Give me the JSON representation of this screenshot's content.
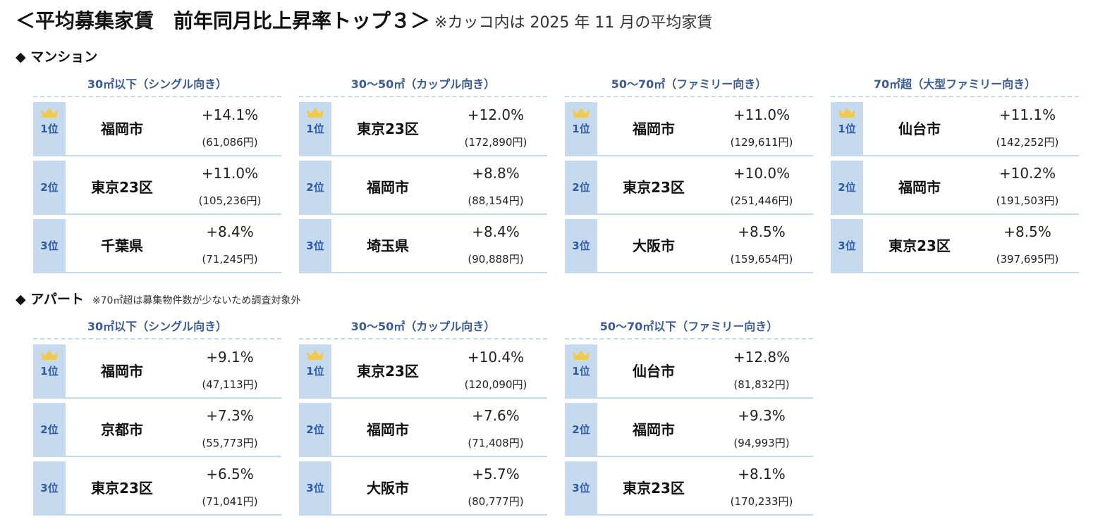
{
  "title": "＜平均募集家賃　前年同月比上昇率トップ３＞",
  "title_note": "※カッコ内は 2025 年 11 月の平均家賃",
  "sections": [
    {
      "heading": "◆ マンション",
      "groups": [
        {
          "header": "30㎡以下（シングル向き）",
          "rows": [
            [
              "1位",
              "福岡市",
              "+14.1%",
              "(61,086円)"
            ],
            [
              "2位",
              "東京23区",
              "+11.0%",
              "(105,236円)"
            ],
            [
              "3位",
              "千葉県",
              "+8.4%",
              "(71,245円)"
            ]
          ]
        },
        {
          "header": "30～50㎡（カップル向き）",
          "rows": [
            [
              "1位",
              "東京23区",
              "+12.0%",
              "(172,890円)"
            ],
            [
              "2位",
              "福岡市",
              "+8.8%",
              "(88,154円)"
            ],
            [
              "3位",
              "埼玉県",
              "+8.4%",
              "(90,888円)"
            ]
          ]
        },
        {
          "header": "50～70㎡（ファミリー向き）",
          "rows": [
            [
              "1位",
              "福岡市",
              "+11.0%",
              "(129,611円)"
            ],
            [
              "2位",
              "東京23区",
              "+10.0%",
              "(251,446円)"
            ],
            [
              "3位",
              "大阪市",
              "+8.5%",
              "(159,654円)"
            ]
          ]
        },
        {
          "header": "70㎡超（大型ファミリー向き）",
          "rows": [
            [
              "1位",
              "仙台市",
              "+11.1%",
              "(142,252円)"
            ],
            [
              "2位",
              "福岡市",
              "+10.2%",
              "(191,503円)"
            ],
            [
              "3位",
              "東京23区",
              "+8.5%",
              "(397,695円)"
            ]
          ]
        }
      ]
    },
    {
      "heading": "◆ アパート",
      "note": "※70㎡超は募集物件数が少ないため調査対象外",
      "groups": [
        {
          "header": "30㎡以下（シングル向き）",
          "rows": [
            [
              "1位",
              "福岡市",
              "+9.1%",
              "(47,113円)"
            ],
            [
              "2位",
              "京都市",
              "+7.3%",
              "(55,773円)"
            ],
            [
              "3位",
              "東京23区",
              "+6.5%",
              "(71,041円)"
            ]
          ]
        },
        {
          "header": "30～50㎡（カップル向き）",
          "rows": [
            [
              "1位",
              "東京23区",
              "+10.4%",
              "(120,090円)"
            ],
            [
              "2位",
              "福岡市",
              "+7.6%",
              "(71,408円)"
            ],
            [
              "3位",
              "大阪市",
              "+5.7%",
              "(80,777円)"
            ]
          ]
        },
        {
          "header": "50～70㎡以下（ファミリー向き）",
          "rows": [
            [
              "1位",
              "仙台市",
              "+12.8%",
              "(81,832円)"
            ],
            [
              "2位",
              "福岡市",
              "+9.3%",
              "(94,993円)"
            ],
            [
              "3位",
              "東京23区",
              "+8.1%",
              "(170,233円)"
            ]
          ]
        }
      ]
    }
  ]
}
